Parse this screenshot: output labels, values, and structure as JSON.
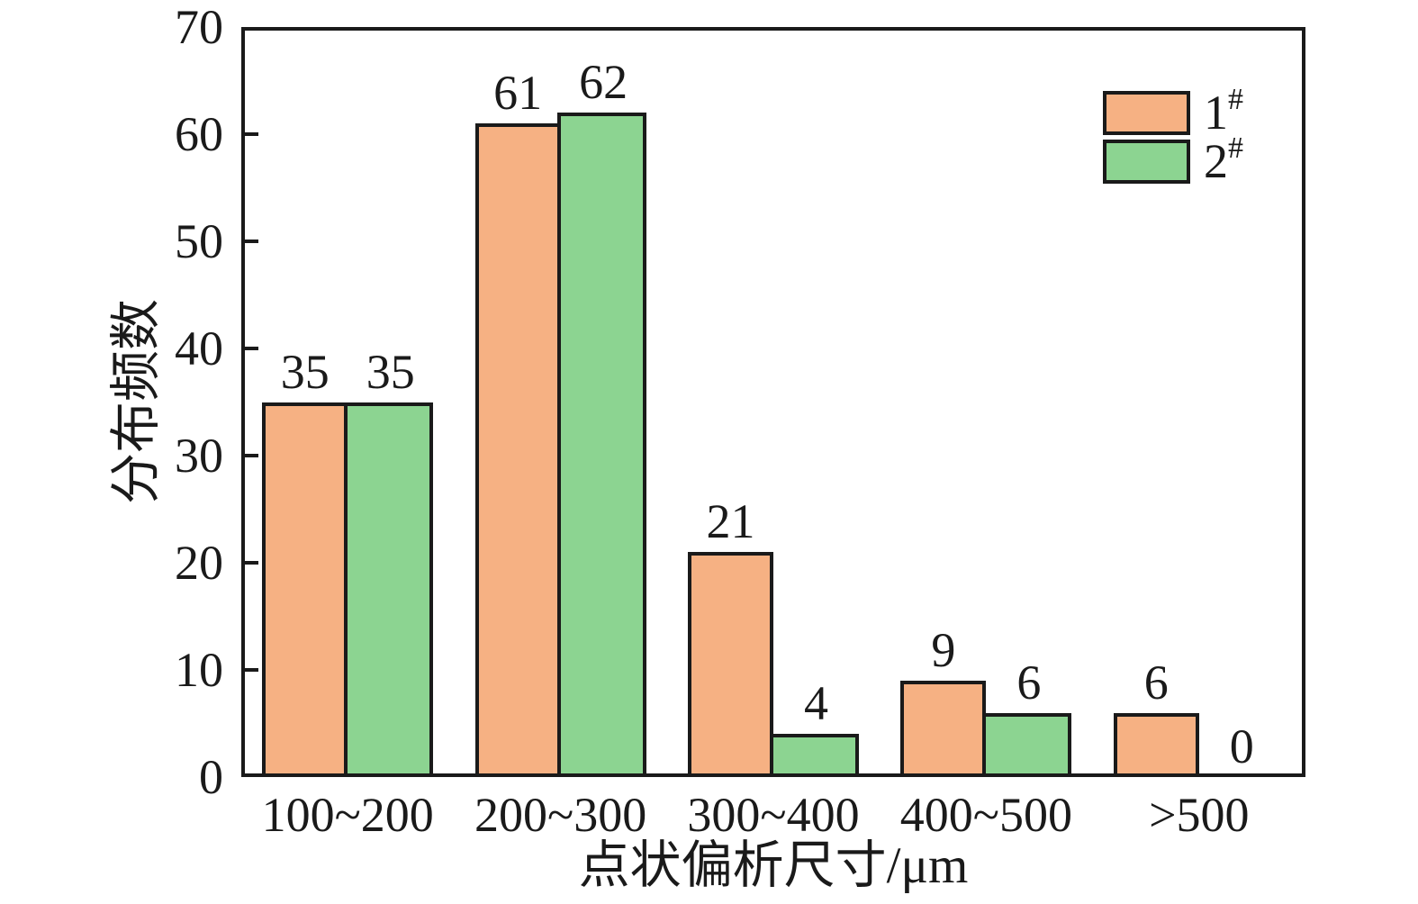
{
  "chart_data": {
    "type": "bar",
    "title": "",
    "categories": [
      "100~200",
      "200~300",
      "300~400",
      "400~500",
      ">500"
    ],
    "series": [
      {
        "name": "1#",
        "legend_base": "1",
        "legend_sup": "#",
        "color": "#F6B183",
        "values": [
          35,
          61,
          21,
          9,
          6
        ]
      },
      {
        "name": "2#",
        "legend_base": "2",
        "legend_sup": "#",
        "color": "#8CD491",
        "values": [
          35,
          62,
          4,
          6,
          0
        ]
      }
    ],
    "xlabel": "点状偏析尺寸/μm",
    "ylabel": "分布频数",
    "ylim": [
      0,
      70
    ],
    "yticks": [
      0,
      10,
      20,
      30,
      40,
      50,
      60,
      70
    ],
    "grid": false,
    "bar_value_labels": true,
    "legend_position": "top-right",
    "frame_color": "#1a1a1a",
    "background_color": "#ffffff"
  }
}
